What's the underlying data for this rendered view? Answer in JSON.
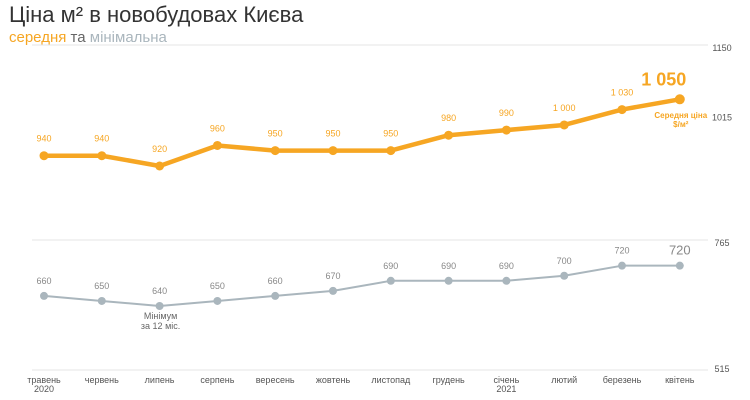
{
  "title": "Ціна м² в новобудовах Києва",
  "subtitle": {
    "part1": "середня",
    "part2": " та ",
    "part3": "мінімальна"
  },
  "colors": {
    "average": "#f6a623",
    "minimum": "#aab6bd",
    "title": "#333333",
    "subtitle_mid": "#666666",
    "grid": "#e6e6e6",
    "axis_text": "#555555"
  },
  "chart_data": {
    "type": "line",
    "categories": [
      "травень|2020",
      "червень",
      "липень",
      "серпень",
      "вересень",
      "жовтень",
      "листопад",
      "грудень",
      "січень|2021",
      "лютий",
      "березень",
      "квітень"
    ],
    "series": [
      {
        "name": "середня",
        "values": [
          940,
          940,
          920,
          960,
          950,
          950,
          950,
          980,
          990,
          1000,
          1030,
          1050
        ],
        "labels": [
          "940",
          "940",
          "920",
          "960",
          "950",
          "950",
          "950",
          "980",
          "990",
          "1 000",
          "1 030",
          "1 050"
        ],
        "color": "#f6a623"
      },
      {
        "name": "мінімальна",
        "values": [
          660,
          650,
          640,
          650,
          660,
          670,
          690,
          690,
          690,
          700,
          720,
          720
        ],
        "labels": [
          "660",
          "650",
          "640",
          "650",
          "660",
          "670",
          "690",
          "690",
          "690",
          "700",
          "720",
          "720"
        ],
        "color": "#aab6bd"
      }
    ],
    "upper_axis": {
      "ticks": [
        1150,
        1015
      ],
      "range": [
        920,
        1150
      ]
    },
    "lower_axis": {
      "ticks": [
        765,
        515
      ],
      "range": [
        515,
        765
      ]
    },
    "annotations": {
      "average_end": "Середня ціна|$/м²",
      "minimum_point": "Мінімум|за 12 міс."
    },
    "grid": false,
    "legend": "subtitle"
  }
}
